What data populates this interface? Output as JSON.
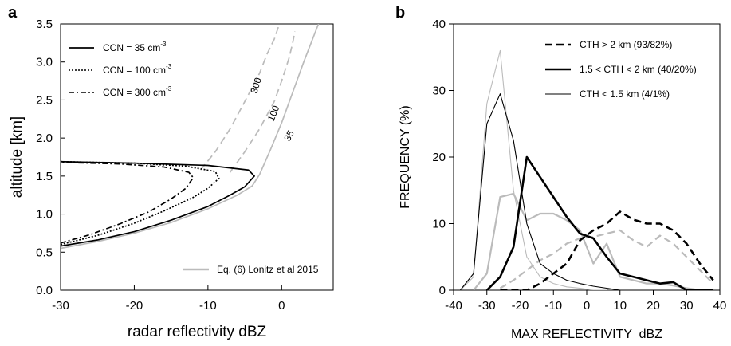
{
  "chart_data": [
    {
      "panel": "a",
      "type": "line",
      "xlabel": "radar reflectivity dBZ",
      "ylabel": "altitude [km]",
      "xlim": [
        -30,
        7
      ],
      "ylim": [
        0,
        3.5
      ],
      "xticks": [
        -30,
        -20,
        -10,
        0
      ],
      "yticks": [
        0.0,
        0.5,
        1.0,
        1.5,
        2.0,
        2.5,
        3.0,
        3.5
      ],
      "legend": [
        {
          "label": "CCN = 35 cm",
          "sup": "-3",
          "style": "solid"
        },
        {
          "label": "CCN = 100 cm",
          "sup": "-3",
          "style": "dotted"
        },
        {
          "label": "CCN = 300 cm",
          "sup": "-3",
          "style": "dashdot"
        }
      ],
      "legend2": {
        "label": "Eq. (6) Lonitz et al 2015",
        "color": "#bbbbbb"
      },
      "annotations": [
        "300",
        "100",
        "35"
      ],
      "series": [
        {
          "name": "CCN = 35 cm-3",
          "style": "solid",
          "color": "#000000",
          "points": [
            [
              -30,
              0.58
            ],
            [
              -25,
              0.66
            ],
            [
              -20,
              0.77
            ],
            [
              -15,
              0.92
            ],
            [
              -10,
              1.1
            ],
            [
              -7,
              1.25
            ],
            [
              -5,
              1.36
            ],
            [
              -3.7,
              1.5
            ],
            [
              -4.5,
              1.58
            ],
            [
              -10,
              1.64
            ],
            [
              -20,
              1.67
            ],
            [
              -30,
              1.69
            ]
          ]
        },
        {
          "name": "CCN = 100 cm-3",
          "style": "dotted",
          "color": "#000000",
          "points": [
            [
              -30,
              0.6
            ],
            [
              -25,
              0.72
            ],
            [
              -20,
              0.88
            ],
            [
              -16,
              1.04
            ],
            [
              -12,
              1.22
            ],
            [
              -10,
              1.34
            ],
            [
              -8.5,
              1.47
            ],
            [
              -9,
              1.56
            ],
            [
              -13,
              1.63
            ],
            [
              -20,
              1.67
            ],
            [
              -30,
              1.69
            ]
          ]
        },
        {
          "name": "CCN = 300 cm-3",
          "style": "dashdot",
          "color": "#000000",
          "points": [
            [
              -30,
              0.62
            ],
            [
              -26,
              0.73
            ],
            [
              -22,
              0.87
            ],
            [
              -18,
              1.03
            ],
            [
              -15,
              1.2
            ],
            [
              -13,
              1.34
            ],
            [
              -12,
              1.48
            ],
            [
              -12.6,
              1.55
            ],
            [
              -16,
              1.62
            ],
            [
              -22,
              1.66
            ],
            [
              -30,
              1.68
            ]
          ]
        },
        {
          "name": "Eq. (6) Lonitz et al 2015",
          "style": "solid",
          "color": "#bbbbbb",
          "points": [
            [
              -30,
              0.55
            ],
            [
              -25,
              0.64
            ],
            [
              -20,
              0.75
            ],
            [
              -15,
              0.89
            ],
            [
              -10,
              1.07
            ],
            [
              -6,
              1.25
            ],
            [
              -4,
              1.37
            ],
            [
              -3,
              1.52
            ],
            [
              -1.5,
              1.85
            ],
            [
              0,
              2.2
            ],
            [
              1.5,
              2.6
            ],
            [
              3,
              3.0
            ],
            [
              4,
              3.25
            ],
            [
              5,
              3.5
            ]
          ]
        },
        {
          "name": "300",
          "style": "dashed",
          "color": "#bbbbbb",
          "points": [
            [
              -11,
              1.58
            ],
            [
              -9,
              1.82
            ],
            [
              -7,
              2.12
            ],
            [
              -5,
              2.48
            ],
            [
              -3,
              2.85
            ],
            [
              -2,
              3.1
            ],
            [
              -1,
              3.3
            ],
            [
              -0.3,
              3.5
            ]
          ]
        },
        {
          "name": "100",
          "style": "dashed",
          "color": "#bbbbbb",
          "points": [
            [
              -7,
              1.55
            ],
            [
              -5,
              1.82
            ],
            [
              -3,
              2.12
            ],
            [
              -1,
              2.48
            ],
            [
              0,
              2.75
            ],
            [
              1,
              3.05
            ],
            [
              1.5,
              3.25
            ],
            [
              1.8,
              3.4
            ]
          ]
        }
      ]
    },
    {
      "panel": "b",
      "type": "line",
      "xlabel": "MAX REFLECTIVITY  dBZ",
      "ylabel": "FREQUENCY (%)",
      "xlim": [
        -40,
        40
      ],
      "ylim": [
        0,
        40
      ],
      "xticks": [
        -40,
        -30,
        -20,
        -10,
        0,
        10,
        20,
        30,
        40
      ],
      "yticks": [
        0,
        10,
        20,
        30,
        40
      ],
      "legend": [
        {
          "label": "CTH > 2 km (93/82%)",
          "style": "dashed-thick"
        },
        {
          "label": "1.5 < CTH < 2 km (40/20%)",
          "style": "solid-thick"
        },
        {
          "label": "CTH < 1.5 km (4/1%)",
          "style": "solid-thin"
        }
      ],
      "series": [
        {
          "name": "CTH > 2 km (93/82%)",
          "style": "dashed",
          "color": "#000000",
          "width": 2.6,
          "points": [
            [
              -26,
              0
            ],
            [
              -22,
              0
            ],
            [
              -18,
              0
            ],
            [
              -14,
              1
            ],
            [
              -10,
              2.5
            ],
            [
              -6,
              4
            ],
            [
              -2,
              7.5
            ],
            [
              2,
              9
            ],
            [
              6,
              10
            ],
            [
              10,
              11.8
            ],
            [
              14,
              10.6
            ],
            [
              18,
              10
            ],
            [
              22,
              10
            ],
            [
              26,
              9
            ],
            [
              30,
              7
            ],
            [
              34,
              4
            ],
            [
              38,
              1.5
            ]
          ]
        },
        {
          "name": "CTH > 2 km (grey)",
          "style": "dashed",
          "color": "#bbbbbb",
          "width": 2.2,
          "points": [
            [
              -26,
              0.3
            ],
            [
              -22,
              1.5
            ],
            [
              -18,
              3
            ],
            [
              -14,
              4.5
            ],
            [
              -10,
              5.5
            ],
            [
              -6,
              7
            ],
            [
              -2,
              7.8
            ],
            [
              2,
              8
            ],
            [
              6,
              8.5
            ],
            [
              10,
              9
            ],
            [
              14,
              7.5
            ],
            [
              18,
              6.5
            ],
            [
              22,
              8.2
            ],
            [
              26,
              7
            ],
            [
              30,
              5
            ],
            [
              34,
              3
            ],
            [
              38,
              1
            ]
          ]
        },
        {
          "name": "1.5 < CTH < 2 km (40/20%)",
          "style": "solid",
          "color": "#000000",
          "width": 2.6,
          "points": [
            [
              -30,
              0
            ],
            [
              -26,
              2
            ],
            [
              -22,
              6.5
            ],
            [
              -18,
              20
            ],
            [
              -14,
              17
            ],
            [
              -10,
              14
            ],
            [
              -6,
              11
            ],
            [
              -2,
              8.5
            ],
            [
              2,
              7.8
            ],
            [
              6,
              5
            ],
            [
              10,
              2.5
            ],
            [
              14,
              2
            ],
            [
              18,
              1.5
            ],
            [
              22,
              1
            ],
            [
              26,
              1.2
            ],
            [
              30,
              0
            ],
            [
              34,
              0
            ],
            [
              38,
              0
            ]
          ]
        },
        {
          "name": "1.5 < CTH < 2 km (grey)",
          "style": "solid",
          "color": "#bbbbbb",
          "width": 2.2,
          "points": [
            [
              -34,
              0
            ],
            [
              -30,
              2.5
            ],
            [
              -26,
              14
            ],
            [
              -22,
              14.5
            ],
            [
              -18,
              10.5
            ],
            [
              -14,
              11.5
            ],
            [
              -10,
              11.5
            ],
            [
              -6,
              10.5
            ],
            [
              -2,
              9
            ],
            [
              2,
              4
            ],
            [
              6,
              7
            ],
            [
              10,
              2
            ],
            [
              14,
              1.5
            ],
            [
              18,
              1
            ],
            [
              22,
              1
            ],
            [
              26,
              0.7
            ],
            [
              30,
              0.3
            ],
            [
              34,
              0
            ],
            [
              38,
              0
            ]
          ]
        },
        {
          "name": "CTH < 1.5 km (4/1%)",
          "style": "solid",
          "color": "#000000",
          "width": 1.1,
          "points": [
            [
              -38,
              0
            ],
            [
              -34,
              2.5
            ],
            [
              -30,
              25
            ],
            [
              -26,
              29.5
            ],
            [
              -22,
              22.5
            ],
            [
              -18,
              10
            ],
            [
              -14,
              4
            ],
            [
              -10,
              2.5
            ],
            [
              -6,
              1.5
            ],
            [
              -2,
              1
            ],
            [
              2,
              0.6
            ],
            [
              6,
              0.3
            ],
            [
              10,
              0
            ],
            [
              14,
              0
            ],
            [
              18,
              0
            ],
            [
              22,
              0
            ]
          ]
        },
        {
          "name": "CTH < 1.5 km (grey)",
          "style": "solid",
          "color": "#bbbbbb",
          "width": 1.1,
          "points": [
            [
              -38,
              0
            ],
            [
              -34,
              2
            ],
            [
              -30,
              28
            ],
            [
              -26,
              36
            ],
            [
              -22,
              15
            ],
            [
              -18,
              5
            ],
            [
              -14,
              2
            ],
            [
              -10,
              1
            ],
            [
              -6,
              0.5
            ],
            [
              -2,
              0.3
            ],
            [
              2,
              0
            ],
            [
              6,
              0
            ]
          ]
        }
      ]
    }
  ]
}
